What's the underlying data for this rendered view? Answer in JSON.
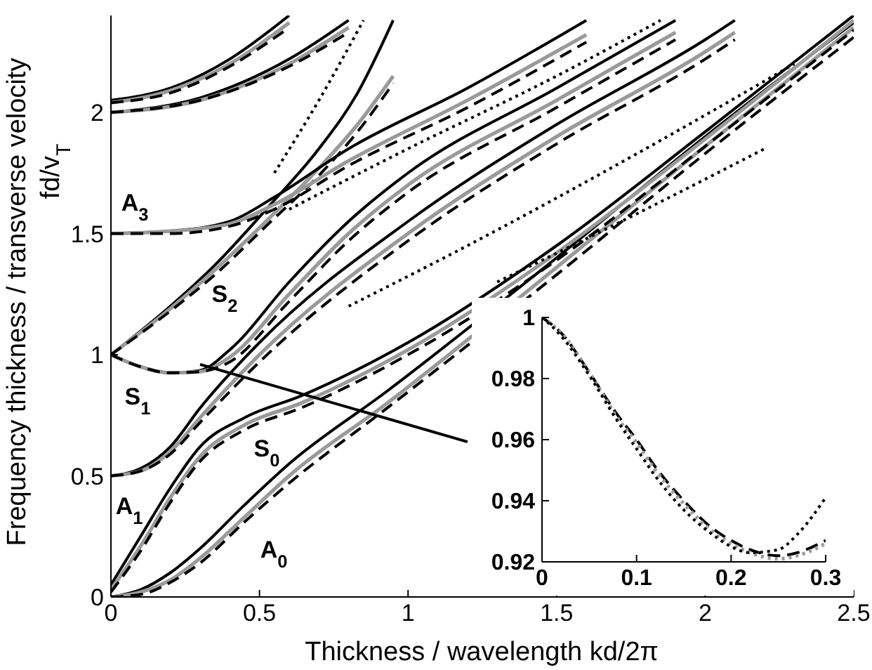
{
  "chart_data": [
    {
      "type": "line",
      "xlabel": "Thickness / wavelength kd/2π",
      "ylabel": "Frequency thickness / transverse velocity\nfd/v$_{T}$",
      "xlim": [
        0,
        2.5
      ],
      "xticks": [
        0,
        0.5,
        1,
        1.5,
        2,
        2.5
      ],
      "ylim": [
        0,
        2.4
      ],
      "yticks": [
        0,
        0.5,
        1,
        1.5,
        2
      ],
      "grid": false,
      "legend": false,
      "marker": "none",
      "annotations": [
        "A$_{3}$",
        "S$_{2}$",
        "S$_{1}$",
        "A$_{1}$",
        "S$_{0}$",
        "A$_{0}$"
      ],
      "series": [
        {
          "color": "#000000",
          "line_style": "solid",
          "x": [
            0,
            0.1,
            0.2,
            0.3,
            0.45,
            0.6,
            0.93,
            1.5,
            2,
            2.5
          ],
          "values": [
            0,
            0.03,
            0.1,
            0.2,
            0.38,
            0.55,
            0.85,
            1.4,
            1.9,
            2.37
          ]
        },
        {
          "color": "#9a9a9a",
          "line_style": "solid",
          "x": [
            0,
            0.1,
            0.2,
            0.3,
            0.45,
            0.6,
            0.93,
            1.5,
            2,
            2.5
          ],
          "values": [
            0,
            0.02,
            0.07,
            0.16,
            0.33,
            0.5,
            0.8,
            1.36,
            1.86,
            2.35
          ]
        },
        {
          "color": "#000000",
          "line_style": "dashed",
          "x": [
            0,
            0.1,
            0.2,
            0.3,
            0.45,
            0.6,
            0.93,
            1.5,
            2,
            2.5
          ],
          "values": [
            0,
            0.01,
            0.06,
            0.14,
            0.31,
            0.47,
            0.78,
            1.33,
            1.83,
            2.31
          ]
        },
        {
          "color": "#000000",
          "line_style": "solid",
          "x": [
            0,
            0.1,
            0.2,
            0.3,
            0.45,
            0.64,
            1,
            1.5,
            2,
            2.5
          ],
          "values": [
            0.05,
            0.25,
            0.45,
            0.62,
            0.74,
            0.83,
            1.05,
            1.45,
            1.92,
            2.4
          ]
        },
        {
          "color": "#9a9a9a",
          "line_style": "solid",
          "x": [
            0,
            0.1,
            0.2,
            0.3,
            0.45,
            0.64,
            1,
            1.5,
            2,
            2.5
          ],
          "values": [
            0.03,
            0.21,
            0.41,
            0.58,
            0.71,
            0.8,
            1.02,
            1.42,
            1.89,
            2.38
          ]
        },
        {
          "color": "#000000",
          "line_style": "dashed",
          "x": [
            0,
            0.1,
            0.2,
            0.3,
            0.45,
            0.64,
            1,
            1.5,
            2,
            2.5
          ],
          "values": [
            0.02,
            0.19,
            0.39,
            0.56,
            0.69,
            0.78,
            1,
            1.39,
            1.86,
            2.34
          ]
        },
        {
          "color": "#000000",
          "line_style": "solid",
          "x": [
            0,
            0.1,
            0.2,
            0.3,
            0.5,
            1,
            1.5,
            2,
            2.1
          ],
          "values": [
            0.5,
            0.53,
            0.62,
            0.78,
            1.05,
            1.55,
            1.95,
            2.3,
            2.38
          ]
        },
        {
          "color": "#9a9a9a",
          "line_style": "solid",
          "x": [
            0,
            0.1,
            0.2,
            0.3,
            0.5,
            1,
            1.5,
            2,
            2.1
          ],
          "values": [
            0.5,
            0.52,
            0.6,
            0.74,
            1,
            1.5,
            1.9,
            2.25,
            2.33
          ]
        },
        {
          "color": "#000000",
          "line_style": "dashed",
          "x": [
            0,
            0.1,
            0.2,
            0.3,
            0.5,
            1,
            1.5,
            2,
            2.1
          ],
          "values": [
            0.5,
            0.52,
            0.59,
            0.72,
            0.97,
            1.47,
            1.87,
            2.22,
            2.3
          ]
        },
        {
          "color": "#000000",
          "line_style": "solid",
          "x": [
            0,
            0.1,
            0.2,
            0.3,
            0.4,
            0.6,
            0.8,
            1,
            1.5,
            1.9
          ],
          "values": [
            1,
            0.95,
            0.925,
            0.935,
            1.02,
            1.3,
            1.55,
            1.75,
            2.1,
            2.38
          ]
        },
        {
          "color": "#9a9a9a",
          "line_style": "solid",
          "x": [
            0,
            0.1,
            0.2,
            0.3,
            0.4,
            0.6,
            0.8,
            1,
            1.5,
            1.9
          ],
          "values": [
            1,
            0.95,
            0.925,
            0.93,
            0.99,
            1.25,
            1.5,
            1.7,
            2.05,
            2.33
          ]
        },
        {
          "color": "#000000",
          "line_style": "dashed",
          "x": [
            0,
            0.1,
            0.2,
            0.3,
            0.4,
            0.6,
            0.8,
            1,
            1.5,
            1.9
          ],
          "values": [
            1,
            0.95,
            0.925,
            0.93,
            0.97,
            1.22,
            1.47,
            1.67,
            2.02,
            2.3
          ]
        },
        {
          "color": "#000000",
          "line_style": "solid",
          "x": [
            0,
            0.2,
            0.35,
            0.53,
            0.7,
            0.83,
            0.95
          ],
          "values": [
            1,
            1.2,
            1.37,
            1.61,
            1.85,
            2.08,
            2.38
          ]
        },
        {
          "color": "#9a9a9a",
          "line_style": "solid",
          "x": [
            0,
            0.2,
            0.35,
            0.53,
            0.7,
            0.83,
            0.95
          ],
          "values": [
            1,
            1.19,
            1.35,
            1.56,
            1.77,
            1.95,
            2.15
          ]
        },
        {
          "color": "#000000",
          "line_style": "dashed",
          "x": [
            0,
            0.2,
            0.35,
            0.53,
            0.7,
            0.83,
            0.95
          ],
          "values": [
            1,
            1.18,
            1.33,
            1.54,
            1.74,
            1.92,
            2.12
          ]
        },
        {
          "color": "#000000",
          "line_style": "solid",
          "x": [
            0,
            0.2,
            0.4,
            0.55,
            0.8,
            1.2,
            1.6
          ],
          "values": [
            1.5,
            1.51,
            1.55,
            1.65,
            1.85,
            2.1,
            2.38
          ]
        },
        {
          "color": "#9a9a9a",
          "line_style": "solid",
          "x": [
            0,
            0.2,
            0.4,
            0.55,
            0.8,
            1.2,
            1.6
          ],
          "values": [
            1.5,
            1.51,
            1.54,
            1.62,
            1.8,
            2.05,
            2.32
          ]
        },
        {
          "color": "#000000",
          "line_style": "dashed",
          "x": [
            0,
            0.2,
            0.4,
            0.55,
            0.8,
            1.2,
            1.6
          ],
          "values": [
            1.5,
            1.5,
            1.53,
            1.6,
            1.78,
            2.02,
            2.29
          ]
        },
        {
          "color": "#000000",
          "line_style": "solid",
          "x": [
            0,
            0.3,
            0.6,
            0.8
          ],
          "values": [
            2,
            2.06,
            2.22,
            2.38
          ]
        },
        {
          "color": "#9a9a9a",
          "line_style": "solid",
          "x": [
            0,
            0.3,
            0.6,
            0.8
          ],
          "values": [
            2,
            2.05,
            2.2,
            2.35
          ]
        },
        {
          "color": "#000000",
          "line_style": "dashed",
          "x": [
            0,
            0.3,
            0.6,
            0.8
          ],
          "values": [
            2,
            2.05,
            2.19,
            2.33
          ]
        },
        {
          "color": "#000000",
          "line_style": "solid",
          "x": [
            0,
            0.2,
            0.4,
            0.6
          ],
          "values": [
            2.05,
            2.1,
            2.22,
            2.4
          ]
        },
        {
          "color": "#9a9a9a",
          "line_style": "solid",
          "x": [
            0,
            0.2,
            0.4,
            0.6
          ],
          "values": [
            2.04,
            2.09,
            2.2,
            2.37
          ]
        },
        {
          "color": "#000000",
          "line_style": "dashed",
          "x": [
            0,
            0.2,
            0.4,
            0.6
          ],
          "values": [
            2.04,
            2.08,
            2.19,
            2.35
          ]
        },
        {
          "color": "#000000",
          "line_style": "dotted",
          "x": [
            0.55,
            0.7,
            0.85
          ],
          "values": [
            1.75,
            2.05,
            2.38
          ]
        },
        {
          "color": "#000000",
          "line_style": "dotted",
          "x": [
            0.6,
            1,
            1.5,
            1.85
          ],
          "values": [
            1.6,
            1.85,
            2.15,
            2.38
          ]
        },
        {
          "color": "#000000",
          "line_style": "dotted",
          "x": [
            0.8,
            1.2,
            1.8,
            2.3
          ],
          "values": [
            1.2,
            1.45,
            1.85,
            2.2
          ]
        },
        {
          "color": "#000000",
          "line_style": "dotted",
          "x": [
            1.3,
            1.8,
            2.2
          ],
          "values": [
            1.3,
            1.6,
            1.85
          ]
        },
        {
          "color": "#000000",
          "line_style": "solid",
          "x": [
            0.3,
            1.2
          ],
          "values": [
            0.96,
            0.64
          ]
        }
      ]
    },
    {
      "type": "line",
      "xlim": [
        0,
        0.3
      ],
      "xticks": [
        0,
        0.1,
        0.2,
        0.3
      ],
      "ylim": [
        0.92,
        1
      ],
      "yticks": [
        0.92,
        0.94,
        0.96,
        0.98,
        1
      ],
      "grid": false,
      "legend": false,
      "marker": "none",
      "series": [
        {
          "color": "#000000",
          "line_style": "dashed",
          "x": [
            0,
            0.02,
            0.05,
            0.08,
            0.1,
            0.12,
            0.15,
            0.18,
            0.2,
            0.22,
            0.25,
            0.27,
            0.3
          ],
          "values": [
            1,
            0.995,
            0.982,
            0.968,
            0.96,
            0.951,
            0.94,
            0.931,
            0.927,
            0.924,
            0.922,
            0.923,
            0.927
          ]
        },
        {
          "color": "#9a9a9a",
          "line_style": "dotted",
          "x": [
            0,
            0.02,
            0.05,
            0.08,
            0.1,
            0.12,
            0.15,
            0.18,
            0.2,
            0.22,
            0.25,
            0.27,
            0.3
          ],
          "values": [
            1,
            0.995,
            0.982,
            0.967,
            0.959,
            0.95,
            0.939,
            0.93,
            0.926,
            0.923,
            0.921,
            0.922,
            0.926
          ]
        },
        {
          "color": "#000000",
          "line_style": "dotted",
          "x": [
            0,
            0.02,
            0.05,
            0.08,
            0.1,
            0.12,
            0.15,
            0.18,
            0.2,
            0.22,
            0.25,
            0.27,
            0.3
          ],
          "values": [
            1,
            0.994,
            0.981,
            0.966,
            0.957,
            0.948,
            0.937,
            0.929,
            0.925,
            0.923,
            0.924,
            0.929,
            0.941
          ]
        }
      ]
    }
  ]
}
